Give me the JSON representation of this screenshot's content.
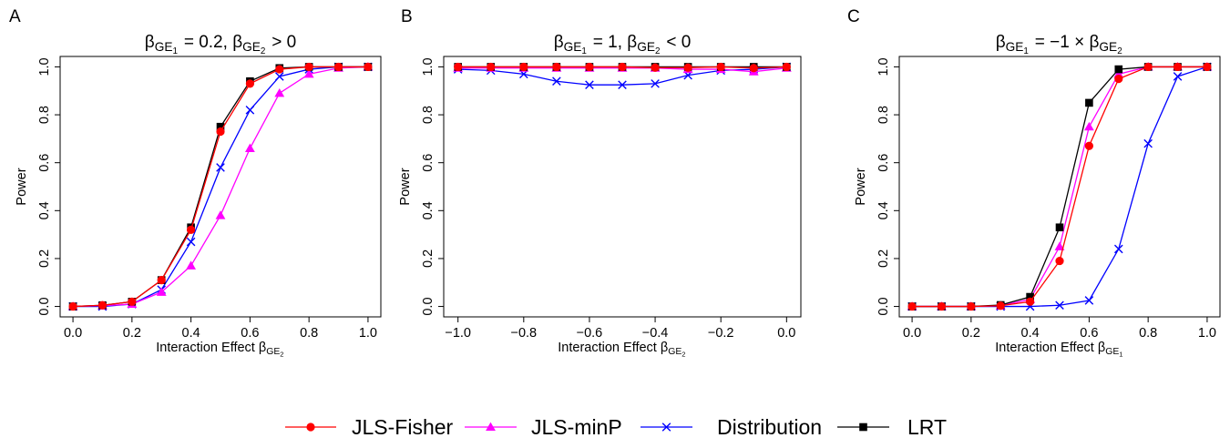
{
  "colors": {
    "JLS-Fisher": "#ff0000",
    "JLS-minP": "#ff00ff",
    "Distribution": "#0000ff",
    "LRT": "#000000"
  },
  "legend": {
    "placement": "bottom-center",
    "entries": [
      {
        "name": "JLS-Fisher",
        "marker": "circle"
      },
      {
        "name": "JLS-minP",
        "marker": "triangle"
      },
      {
        "name": "Distribution",
        "marker": "x"
      },
      {
        "name": "LRT",
        "marker": "square"
      }
    ]
  },
  "chart_data": [
    {
      "type": "line",
      "panel_label": "A",
      "title": "βGE1 = 0.2, βGE2 > 0",
      "xlabel": "Interaction Effect βGE2",
      "ylabel": "Power",
      "xlim": [
        0.0,
        1.0
      ],
      "ylim": [
        0.0,
        1.0
      ],
      "xticks": [
        "0.0",
        "0.2",
        "0.4",
        "0.6",
        "0.8",
        "1.0"
      ],
      "yticks": [
        "0.0",
        "0.2",
        "0.4",
        "0.6",
        "0.8",
        "1.0"
      ],
      "grid": false,
      "x": [
        0.0,
        0.1,
        0.2,
        0.3,
        0.4,
        0.5,
        0.6,
        0.7,
        0.8,
        0.9,
        1.0
      ],
      "series": [
        {
          "name": "JLS-Fisher",
          "values": [
            0.0,
            0.005,
            0.02,
            0.11,
            0.32,
            0.73,
            0.93,
            0.99,
            1.0,
            1.0,
            1.0
          ]
        },
        {
          "name": "JLS-minP",
          "values": [
            0.0,
            0.003,
            0.01,
            0.06,
            0.17,
            0.38,
            0.66,
            0.89,
            0.97,
            0.995,
            1.0
          ]
        },
        {
          "name": "Distribution",
          "values": [
            0.0,
            0.0,
            0.01,
            0.07,
            0.27,
            0.58,
            0.82,
            0.96,
            0.99,
            1.0,
            1.0
          ]
        },
        {
          "name": "LRT",
          "values": [
            0.0,
            0.005,
            0.02,
            0.11,
            0.33,
            0.75,
            0.94,
            0.995,
            1.0,
            1.0,
            1.0
          ]
        }
      ]
    },
    {
      "type": "line",
      "panel_label": "B",
      "title": "βGE1 = 1, βGE2 < 0",
      "xlabel": "Interaction Effect βGE2",
      "ylabel": "Power",
      "xlim": [
        -1.0,
        0.0
      ],
      "ylim": [
        0.0,
        1.0
      ],
      "xticks": [
        "−1.0",
        "−0.8",
        "−0.6",
        "−0.4",
        "−0.2",
        "0.0"
      ],
      "yticks": [
        "0.0",
        "0.2",
        "0.4",
        "0.6",
        "0.8",
        "1.0"
      ],
      "grid": false,
      "x": [
        -1.0,
        -0.9,
        -0.8,
        -0.7,
        -0.6,
        -0.5,
        -0.4,
        -0.3,
        -0.2,
        -0.1,
        0.0
      ],
      "series": [
        {
          "name": "JLS-Fisher",
          "values": [
            1.0,
            1.0,
            1.0,
            1.0,
            1.0,
            1.0,
            0.997,
            0.997,
            1.0,
            0.995,
            1.0
          ]
        },
        {
          "name": "JLS-minP",
          "values": [
            0.995,
            0.995,
            0.995,
            0.995,
            0.995,
            0.995,
            0.995,
            0.99,
            0.99,
            0.98,
            0.995
          ]
        },
        {
          "name": "Distribution",
          "values": [
            0.99,
            0.985,
            0.97,
            0.94,
            0.925,
            0.925,
            0.93,
            0.965,
            0.985,
            0.99,
            1.0
          ]
        },
        {
          "name": "LRT",
          "values": [
            1.0,
            1.0,
            1.0,
            1.0,
            1.0,
            1.0,
            1.0,
            1.0,
            1.0,
            1.0,
            1.0
          ]
        }
      ]
    },
    {
      "type": "line",
      "panel_label": "C",
      "title": "βGE1 = −1 × βGE2",
      "xlabel": "Interaction Effect βGE1",
      "ylabel": "Power",
      "xlim": [
        0.0,
        1.0
      ],
      "ylim": [
        0.0,
        1.0
      ],
      "xticks": [
        "0.0",
        "0.2",
        "0.4",
        "0.6",
        "0.8",
        "1.0"
      ],
      "yticks": [
        "0.0",
        "0.2",
        "0.4",
        "0.6",
        "0.8",
        "1.0"
      ],
      "grid": false,
      "x": [
        0.0,
        0.1,
        0.2,
        0.3,
        0.4,
        0.5,
        0.6,
        0.7,
        0.8,
        0.9,
        1.0
      ],
      "series": [
        {
          "name": "JLS-Fisher",
          "values": [
            0.0,
            0.0,
            0.0,
            0.003,
            0.02,
            0.19,
            0.67,
            0.95,
            1.0,
            1.0,
            1.0
          ]
        },
        {
          "name": "JLS-minP",
          "values": [
            0.0,
            0.0,
            0.0,
            0.003,
            0.03,
            0.25,
            0.75,
            0.97,
            1.0,
            1.0,
            1.0
          ]
        },
        {
          "name": "Distribution",
          "values": [
            0.0,
            0.0,
            0.0,
            0.0,
            0.0,
            0.005,
            0.025,
            0.24,
            0.68,
            0.96,
            1.0
          ]
        },
        {
          "name": "LRT",
          "values": [
            0.0,
            0.0,
            0.0,
            0.006,
            0.04,
            0.33,
            0.85,
            0.99,
            1.0,
            1.0,
            1.0
          ]
        }
      ]
    }
  ]
}
